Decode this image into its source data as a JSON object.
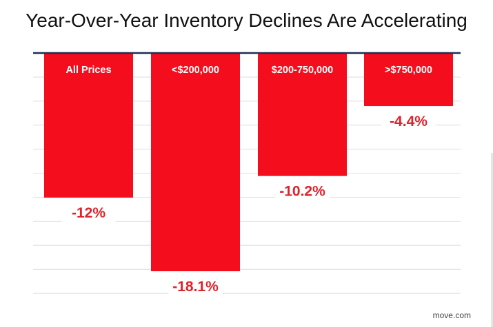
{
  "title": "Year-Over-Year Inventory Declines Are Accelerating",
  "source": "move.com",
  "colors": {
    "bar": "#f40d1c",
    "value_label": "#e0222b",
    "axis": "#1f2d4f",
    "grid": "#dedede"
  },
  "chart_data": {
    "type": "bar",
    "title": "Year-Over-Year Inventory Declines Are Accelerating",
    "categories": [
      "All Prices",
      "<$200,000",
      "$200-750,000",
      ">$750,000"
    ],
    "values": [
      -12,
      -18.1,
      -10.2,
      -4.4
    ],
    "data_labels": [
      "-12%",
      "-18.1%",
      "-10.2%",
      "-4.4%"
    ],
    "xlabel": "",
    "ylabel": "",
    "ylim": [
      -20,
      0
    ],
    "grid": true,
    "legend": "none"
  }
}
